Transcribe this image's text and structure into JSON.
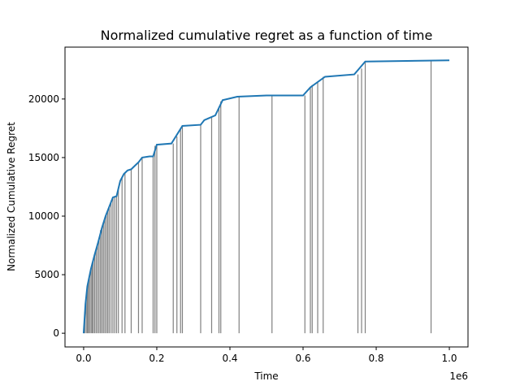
{
  "chart_data": {
    "type": "line",
    "title": "Normalized cumulative regret as a function of time",
    "x_label": "Time",
    "y_label": "Normalized Cumulative Regret",
    "x_offset_label": "1e6",
    "x": [
      0,
      0.005,
      0.01,
      0.02,
      0.03,
      0.04,
      0.05,
      0.06,
      0.07,
      0.08,
      0.09,
      0.1,
      0.11,
      0.12,
      0.13,
      0.14,
      0.15,
      0.16,
      0.18,
      0.19,
      0.2,
      0.24,
      0.25,
      0.27,
      0.32,
      0.33,
      0.36,
      0.38,
      0.42,
      0.5,
      0.6,
      0.62,
      0.66,
      0.74,
      0.77,
      1.0
    ],
    "series": [
      {
        "color": "#1f77b4",
        "values": [
          0,
          2500,
          4000,
          5500,
          6700,
          7800,
          9000,
          10000,
          10800,
          11600,
          11700,
          13000,
          13600,
          13900,
          14000,
          14300,
          14600,
          15000,
          15100,
          15100,
          16100,
          16200,
          16700,
          17700,
          17800,
          18200,
          18600,
          19900,
          20200,
          20300,
          20300,
          21000,
          21900,
          22100,
          23200,
          23300
        ]
      }
    ],
    "events": {
      "color": "#808080",
      "x": [
        0.003,
        0.007,
        0.01,
        0.013,
        0.016,
        0.02,
        0.023,
        0.026,
        0.03,
        0.034,
        0.038,
        0.042,
        0.046,
        0.05,
        0.054,
        0.058,
        0.062,
        0.066,
        0.07,
        0.075,
        0.08,
        0.085,
        0.09,
        0.095,
        0.105,
        0.113,
        0.13,
        0.15,
        0.16,
        0.19,
        0.195,
        0.2,
        0.245,
        0.255,
        0.265,
        0.27,
        0.32,
        0.35,
        0.37,
        0.375,
        0.425,
        0.515,
        0.605,
        0.62,
        0.625,
        0.64,
        0.655,
        0.75,
        0.76,
        0.77,
        0.95
      ],
      "values": [
        1800,
        3000,
        4000,
        4500,
        5000,
        5500,
        6000,
        6300,
        6700,
        7100,
        7600,
        8100,
        8800,
        9000,
        9400,
        9800,
        10200,
        10500,
        10800,
        11200,
        11600,
        11650,
        11700,
        12300,
        13300,
        13700,
        14000,
        14600,
        15000,
        15100,
        16000,
        16100,
        16200,
        16800,
        17500,
        17700,
        17800,
        18500,
        19200,
        19800,
        20200,
        20300,
        20300,
        21000,
        21200,
        21500,
        21900,
        22100,
        22600,
        23200,
        23300
      ]
    },
    "xlim": [
      -0.051,
      1.051
    ],
    "ylim": [
      -1170,
      24430
    ],
    "xticks": [
      {
        "value": 0,
        "label": "0.0"
      },
      0.2,
      0.4,
      0.6,
      0.8,
      {
        "value": 1,
        "label": "1.0"
      }
    ],
    "yticks": [
      0,
      5000,
      10000,
      15000,
      20000
    ]
  }
}
